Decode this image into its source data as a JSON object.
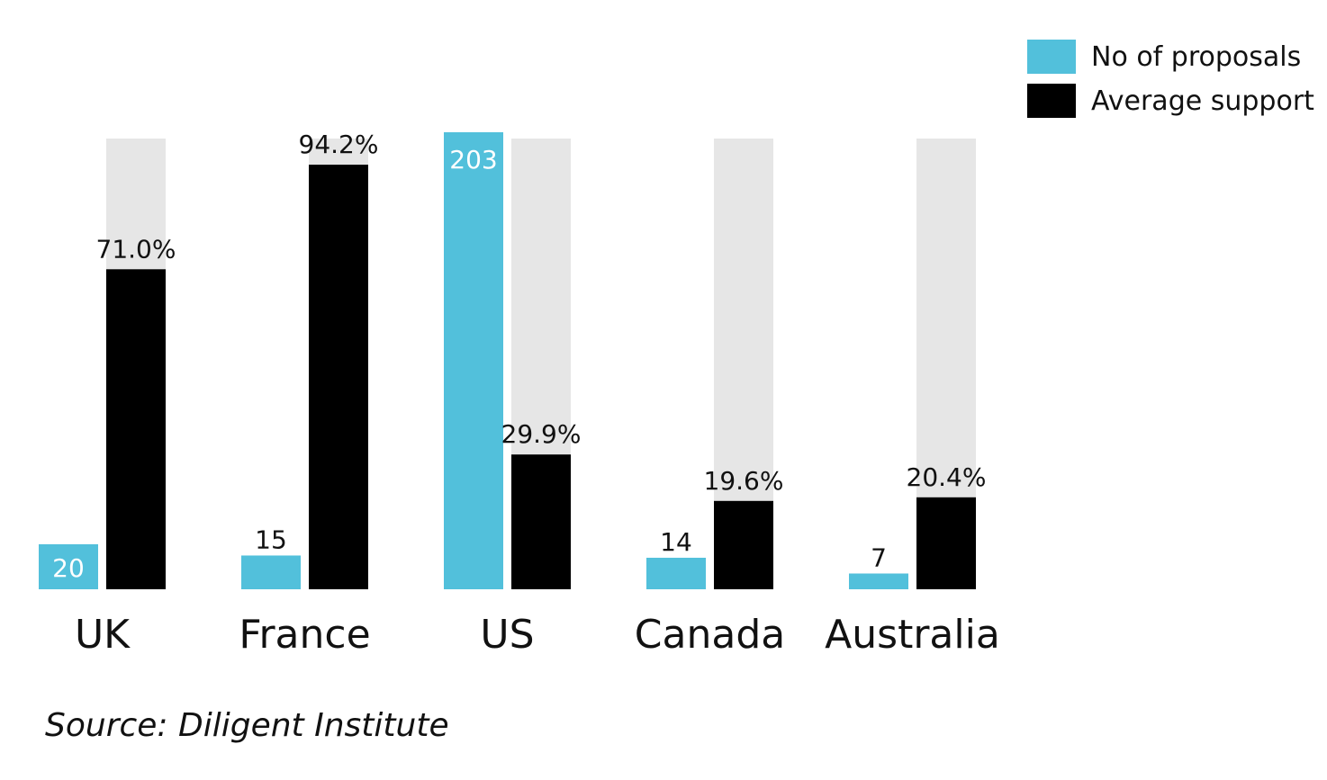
{
  "chart_data": {
    "type": "bar",
    "categories": [
      "UK",
      "France",
      "US",
      "Canada",
      "Australia"
    ],
    "series": [
      {
        "name": "No of proposals",
        "values": [
          20,
          15,
          203,
          14,
          7
        ],
        "labels": [
          "20",
          "15",
          "203",
          "14",
          "7"
        ],
        "color": "#52c0db"
      },
      {
        "name": "Average support",
        "values": [
          71.0,
          94.2,
          29.9,
          19.6,
          20.4
        ],
        "labels": [
          "71.0%",
          "94.2%",
          "29.9%",
          "19.6%",
          "20.4%"
        ],
        "color": "#000000",
        "background_color": "#e6e6e6",
        "max": 100
      }
    ],
    "proposals_max": 203,
    "legend_position": "top-right",
    "grid": false,
    "xlabel": "",
    "ylabel": ""
  },
  "source": "Source: Diligent Institute"
}
